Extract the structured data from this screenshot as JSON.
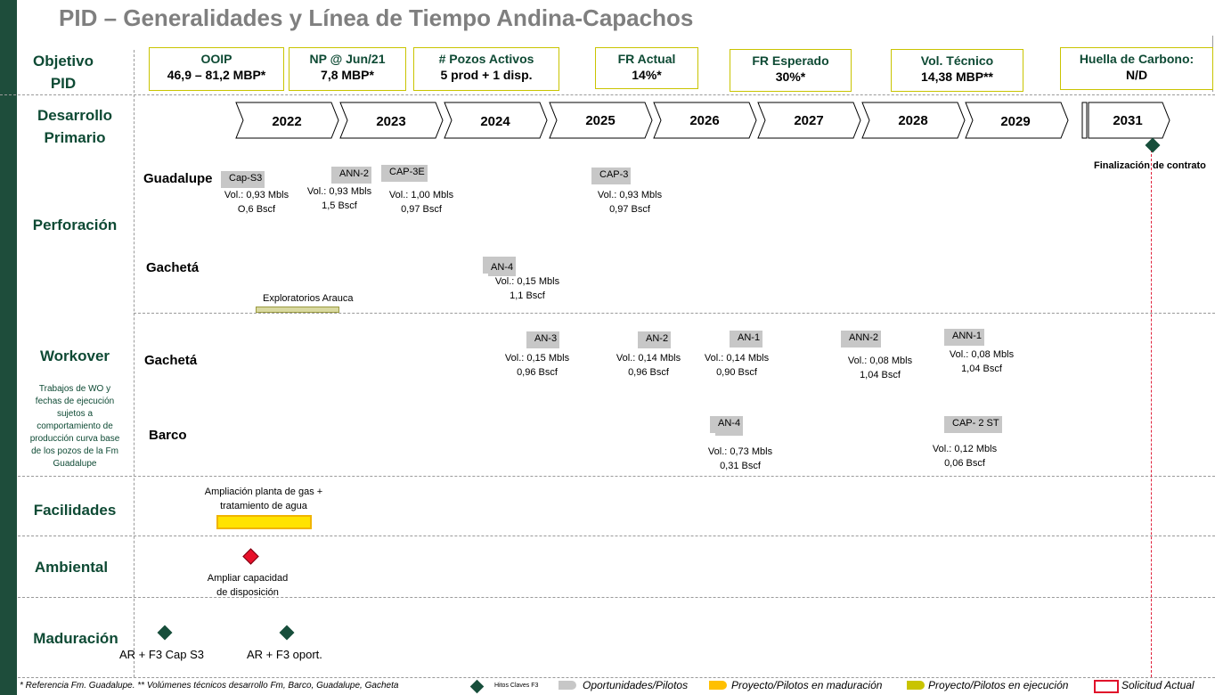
{
  "title": "PID – Generalidades y Línea de Tiempo Andina-Capachos",
  "colors": {
    "sidebar": "#1e4d3b",
    "label": "#0e4a34",
    "kpi_border": "#c9c400",
    "redline": "#e0203a",
    "milestone": "#174e3b",
    "pilot_grey": "#c7c7c7",
    "maturation_yellow": "#ffc000",
    "execution_yellow": "#c9c400"
  },
  "rows": {
    "objetivo": "Objetivo\nPID",
    "desarrollo": "Desarrollo\nPrimario",
    "perforacion": "Perforación",
    "workover": "Workover",
    "workover_note": "Trabajos de WO y fechas de ejecución sujetos a comportamiento de producción curva base de los pozos de la Fm Guadalupe",
    "facilidades": "Facilidades",
    "ambiental": "Ambiental",
    "maduracion": "Maduración"
  },
  "kpis": [
    {
      "label": "OOIP",
      "value": "46,9 – 81,2 MBP*"
    },
    {
      "label": "NP @ Jun/21",
      "value": "7,8 MBP*"
    },
    {
      "label": "# Pozos Activos",
      "value": "5 prod + 1 disp."
    },
    {
      "label": "FR Actual",
      "value": "14%*"
    },
    {
      "label": "FR Esperado",
      "value": "30%*"
    },
    {
      "label": "Vol. Técnico",
      "value": "14,38 MBP**"
    },
    {
      "label": "Huella de Carbono:",
      "value": "N/D"
    }
  ],
  "years": [
    "2022",
    "2023",
    "2024",
    "2025",
    "2026",
    "2027",
    "2028",
    "2029",
    "2031"
  ],
  "contract_end": "Finalización de contrato",
  "perforacion": {
    "guadalupe_label": "Guadalupe",
    "gacheta_label": "Gachetá",
    "exploratorios": "Exploratorios Arauca",
    "wells": [
      {
        "name": "Cap-S3",
        "vol": "Vol.: 0,93 Mbls",
        "gas": "O,6 Bscf"
      },
      {
        "name": "ANN-2",
        "vol": "Vol.: 0,93 Mbls",
        "gas": "1,5 Bscf"
      },
      {
        "name": "CAP-3E",
        "vol": "Vol.: 1,00 Mbls",
        "gas": "0,97 Bscf"
      },
      {
        "name": "CAP-3",
        "vol": "Vol.: 0,93 Mbls",
        "gas": "0,97 Bscf"
      },
      {
        "name": "AN-4",
        "vol": "Vol.: 0,15 Mbls",
        "gas": "1,1 Bscf"
      }
    ]
  },
  "workover": {
    "gacheta_label": "Gachetá",
    "barco_label": "Barco",
    "wells": [
      {
        "name": "AN-3",
        "vol": "Vol.: 0,15 Mbls",
        "gas": "0,96 Bscf"
      },
      {
        "name": "AN-2",
        "vol": "Vol.: 0,14 Mbls",
        "gas": "0,96 Bscf"
      },
      {
        "name": "AN-1",
        "vol": "Vol.: 0,14 Mbls",
        "gas": "0,90 Bscf"
      },
      {
        "name": "ANN-2",
        "vol": "Vol.: 0,08 Mbls",
        "gas": "1,04 Bscf"
      },
      {
        "name": "ANN-1",
        "vol": "Vol.: 0,08 Mbls",
        "gas": "1,04 Bscf"
      },
      {
        "name": "AN-4",
        "vol": "Vol.: 0,73 Mbls",
        "gas": "0,31 Bscf"
      },
      {
        "name": "CAP- 2 ST",
        "vol": "Vol.: 0,12 Mbls",
        "gas": "0,06 Bscf"
      }
    ]
  },
  "facilidades": {
    "text": "Ampliación planta de gas +\ntratamiento de agua"
  },
  "ambiental": {
    "text": "Ampliar capacidad\nde disposición"
  },
  "maduracion": {
    "m1": "AR + F3 Cap S3",
    "m2": "AR + F3 oport."
  },
  "footer": "* Referencia Fm. Guadalupe. ** Volúmenes técnicos desarrollo Fm, Barco, Guadalupe, Gacheta",
  "legend": {
    "hitos": "Hitos Claves F3",
    "oportunidades": "Oportunidades/Pilotos",
    "maduracion": "Proyecto/Pilotos en maduración",
    "ejecucion": "Proyecto/Pilotos en  ejecución",
    "solicitud": "Solicitud Actual"
  }
}
